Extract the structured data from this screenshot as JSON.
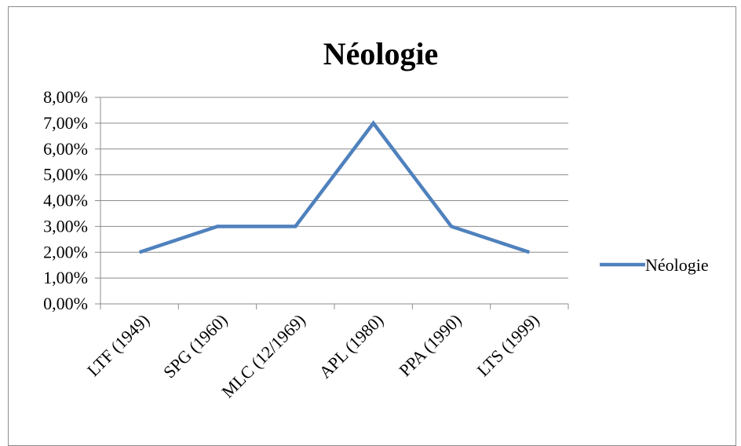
{
  "chart_data": {
    "type": "line",
    "title": "Néologie",
    "xlabel": "",
    "ylabel": "",
    "categories": [
      "LTF (1949)",
      "SPG (1960)",
      "MLC (12/1969)",
      "APL (1980)",
      "PPA (1990)",
      "LTS (1999)"
    ],
    "series": [
      {
        "name": "Néologie",
        "values": [
          2,
          3,
          3,
          7,
          3,
          2
        ],
        "color": "#4f81bd"
      }
    ],
    "ylim": [
      0,
      8
    ],
    "yticks": [
      "0,00%",
      "1,00%",
      "2,00%",
      "3,00%",
      "4,00%",
      "5,00%",
      "6,00%",
      "7,00%",
      "8,00%"
    ],
    "grid": true,
    "legend_position": "right"
  }
}
